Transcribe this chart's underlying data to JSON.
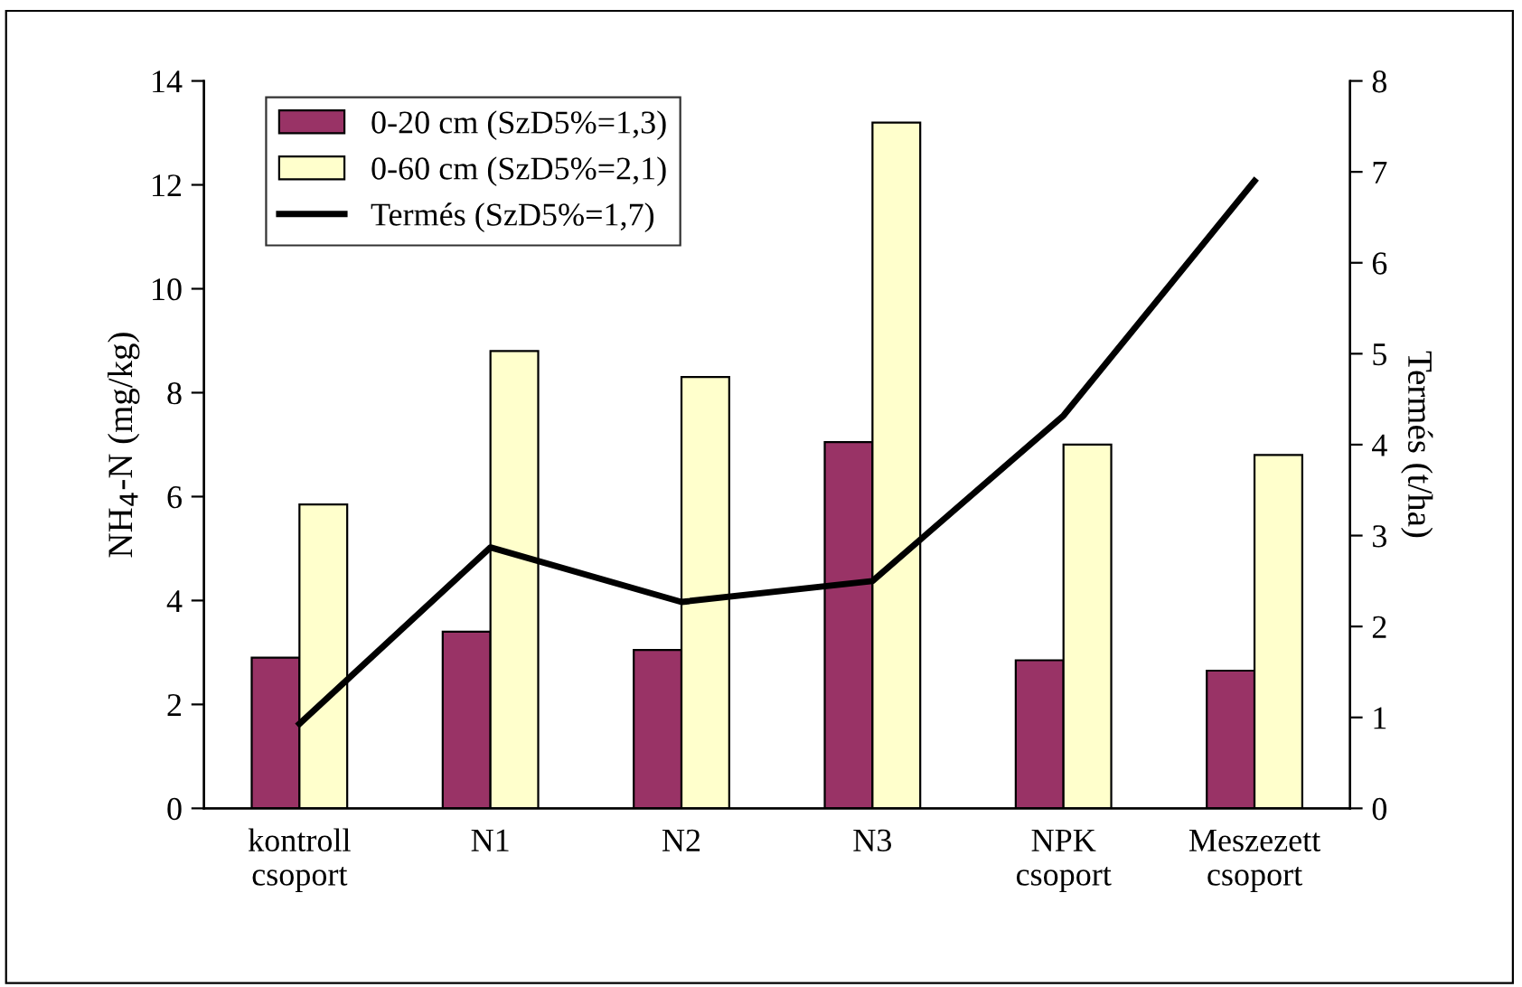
{
  "chart_data": {
    "type": "bar",
    "categories": [
      "kontroll\ncsoport",
      "N1",
      "N2",
      "N3",
      "NPK\ncsoport",
      "Meszezett\ncsoport"
    ],
    "series": [
      {
        "name": "0-20 cm (SzD5%=1,3)",
        "color": "#993366",
        "values": [
          2.9,
          3.4,
          3.05,
          7.05,
          2.85,
          2.65
        ]
      },
      {
        "name": "0-60 cm (SzD5%=2,1)",
        "color": "#ffffcc",
        "values": [
          5.85,
          8.8,
          8.3,
          13.2,
          7.0,
          6.8
        ]
      },
      {
        "name": "Termés (SzD5%=1,7)",
        "type": "line",
        "axis": "y2",
        "color": "#000000",
        "values": [
          0.93,
          2.87,
          2.27,
          2.5,
          4.32,
          6.9
        ]
      }
    ],
    "ylabel": "NH$_{4}$-N (mg/kg)",
    "y2label": "Termés (t/ha)",
    "ylim": [
      0,
      14
    ],
    "yticks": [
      0,
      2,
      4,
      6,
      8,
      10,
      12,
      14
    ],
    "y2lim": [
      0,
      8
    ],
    "y2ticks": [
      0,
      1,
      2,
      3,
      4,
      5,
      6,
      7,
      8
    ],
    "legend": "top left",
    "grid": false,
    "marker": "none",
    "line_style": "solid"
  }
}
